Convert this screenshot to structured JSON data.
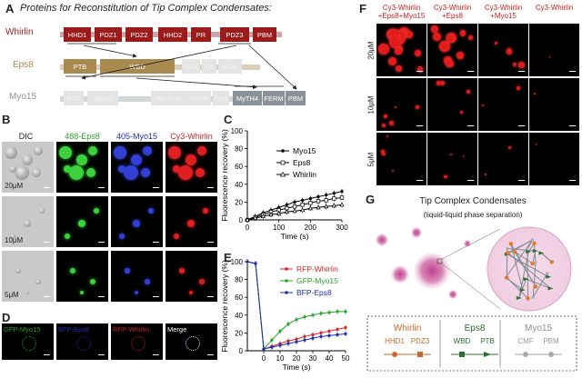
{
  "panel_A": {
    "label": "A",
    "title": "Proteins for Reconstitution of Tip Complex Condensates:",
    "proteins": [
      {
        "name": "Whirlin",
        "color": "#9b1b1b",
        "domains": [
          "HHD1",
          "PDZ1",
          "PDZ2",
          "HHD2",
          "PR",
          "PDZ3",
          "PBM"
        ]
      },
      {
        "name": "Eps8",
        "color": "#a88a4e",
        "domains": [
          "PTB",
          "WBD",
          "SH3",
          "PR",
          "SAM"
        ]
      },
      {
        "name": "Myo15",
        "color": "#8b9297",
        "domains": [
          "NTD",
          "Motor",
          "My-TH4",
          "FERM",
          "SH3",
          "MyTH4",
          "FERM",
          "PBM"
        ]
      }
    ]
  },
  "panel_B": {
    "label": "B",
    "channels": [
      "DIC",
      "488-Eps8",
      "405-Myo15",
      "Cy3-Whirlin"
    ],
    "channel_colors": [
      "#222222",
      "#2ca02c",
      "#1f2fa8",
      "#c51f1f"
    ],
    "rows": [
      "20μM",
      "10μM",
      "5μM"
    ]
  },
  "panel_C": {
    "label": "C",
    "chart_data": {
      "type": "line",
      "xlabel": "Time (s)",
      "ylabel": "Fluorescence recovery (%)",
      "xlim": [
        0,
        300
      ],
      "ylim": [
        0,
        100
      ],
      "xticks": [
        0,
        100,
        200,
        300
      ],
      "yticks": [
        0,
        20,
        40,
        60,
        80,
        100
      ],
      "x": [
        0,
        25,
        50,
        75,
        100,
        125,
        150,
        175,
        200,
        225,
        250,
        275,
        300
      ],
      "series": [
        {
          "name": "Myo15",
          "marker": "dot",
          "values": [
            0,
            4,
            8,
            11,
            14,
            17,
            20,
            22,
            24,
            26,
            28,
            30,
            32
          ]
        },
        {
          "name": "Eps8",
          "marker": "square",
          "values": [
            0,
            3,
            6,
            9,
            11,
            13,
            15,
            17,
            19,
            21,
            22,
            24,
            25
          ]
        },
        {
          "name": "Whirlin",
          "marker": "triangle",
          "values": [
            0,
            2,
            4,
            6,
            7,
            9,
            10,
            11,
            13,
            14,
            15,
            16,
            17
          ]
        }
      ]
    }
  },
  "panel_D": {
    "label": "D",
    "channels": [
      "GFP-Myo15",
      "BFP-Eps8",
      "RFP-Whirlin",
      "Merge"
    ],
    "channel_colors": [
      "#2ca02c",
      "#1f2fa8",
      "#c51f1f",
      "#ffffff"
    ]
  },
  "panel_E": {
    "label": "E",
    "chart_data": {
      "type": "line",
      "xlabel": "Time (s)",
      "ylabel": "Fluorescence recovery (%)",
      "xlim": [
        -10,
        50
      ],
      "ylim": [
        0,
        100
      ],
      "xticks": [
        0,
        10,
        20,
        30,
        40,
        50
      ],
      "yticks": [
        0,
        20,
        40,
        60,
        80,
        100
      ],
      "x": [
        -10,
        -5,
        0,
        5,
        10,
        15,
        20,
        25,
        30,
        35,
        40,
        45,
        50
      ],
      "series": [
        {
          "name": "RFP-Whirlin",
          "color": "#d62728",
          "values": [
            100,
            98,
            2,
            5,
            8,
            11,
            13,
            16,
            18,
            20,
            22,
            24,
            26
          ]
        },
        {
          "name": "GFP-Myo15",
          "color": "#2ca02c",
          "values": [
            100,
            98,
            2,
            12,
            22,
            30,
            35,
            38,
            40,
            42,
            43,
            44,
            44
          ]
        },
        {
          "name": "BFP-Eps8",
          "color": "#1f2fa8",
          "values": [
            100,
            98,
            2,
            4,
            6,
            8,
            10,
            12,
            14,
            16,
            17,
            18,
            19
          ]
        }
      ]
    }
  },
  "panel_F": {
    "label": "F",
    "columns": [
      "Cy3-Whirlin\n+Eps8+Myo15",
      "Cy3-Whirlin\n+Eps8",
      "Cy3-Whirlin\n+Myo15",
      "Cy3-Whirlin"
    ],
    "rows": [
      "20μM",
      "10μM",
      "5μM"
    ]
  },
  "panel_G": {
    "label": "G",
    "title": "Tip Complex Condensates",
    "subtitle": "(liquid-liquid phase separation)",
    "legend": [
      {
        "protein": "Whirlin",
        "color": "#c8692a",
        "items": [
          "HHD1",
          "PDZ3"
        ]
      },
      {
        "protein": "Eps8",
        "color": "#2e6e2e",
        "items": [
          "WBD",
          "PTB"
        ]
      },
      {
        "protein": "Myo15",
        "color": "#8b9297",
        "items": [
          "CMF",
          "PBM"
        ]
      }
    ]
  }
}
